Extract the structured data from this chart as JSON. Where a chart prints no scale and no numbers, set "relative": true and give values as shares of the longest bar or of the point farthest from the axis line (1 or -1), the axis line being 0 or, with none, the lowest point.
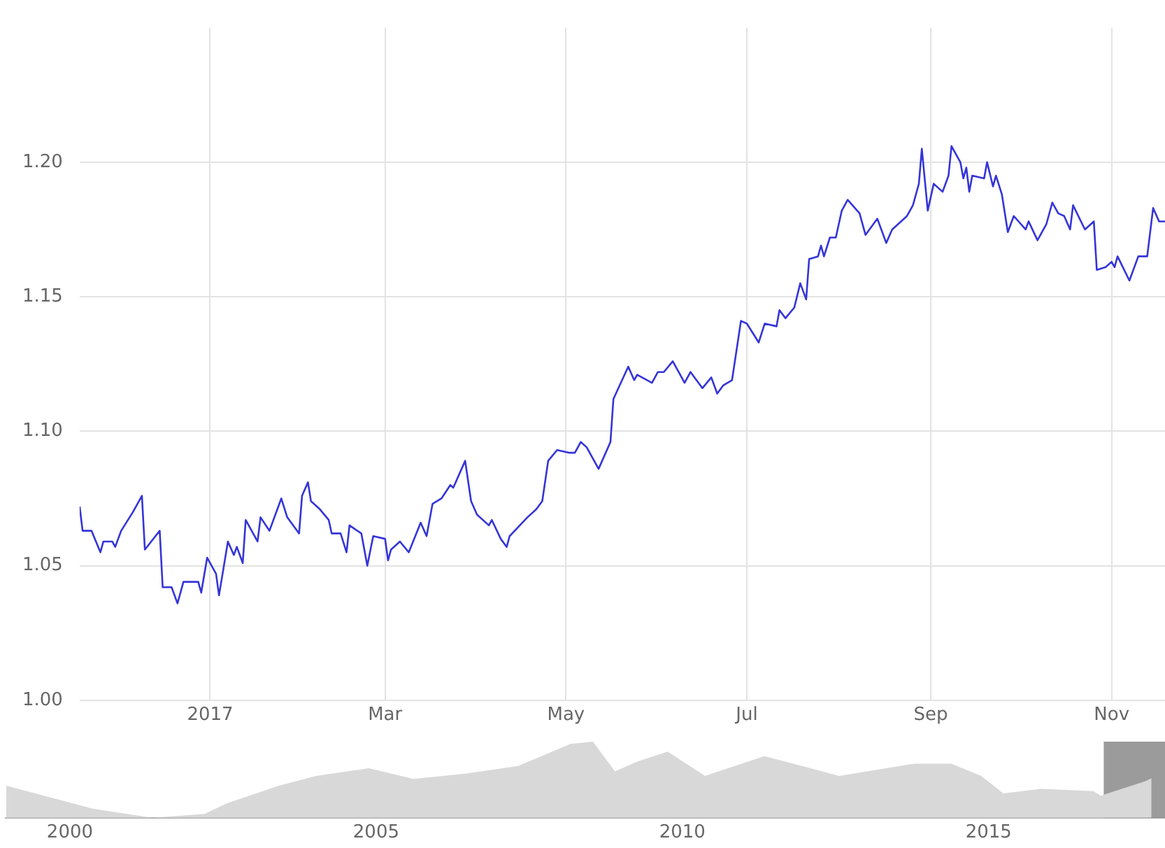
{
  "chart_data": [
    {
      "type": "line",
      "x": [
        "2016-11-18",
        "2016-11-19",
        "2016-11-22",
        "2016-11-25",
        "2016-11-26",
        "2016-11-29",
        "2016-11-30",
        "2016-12-02",
        "2016-12-06",
        "2016-12-09",
        "2016-12-10",
        "2016-12-15",
        "2016-12-16",
        "2016-12-19",
        "2016-12-21",
        "2016-12-23",
        "2016-12-28",
        "2016-12-29",
        "2016-12-31",
        "2017-01-03",
        "2017-01-04",
        "2017-01-07",
        "2017-01-09",
        "2017-01-10",
        "2017-01-12",
        "2017-01-13",
        "2017-01-17",
        "2017-01-18",
        "2017-01-21",
        "2017-01-25",
        "2017-01-27",
        "2017-01-31",
        "2017-02-01",
        "2017-02-03",
        "2017-02-04",
        "2017-02-07",
        "2017-02-10",
        "2017-02-11",
        "2017-02-14",
        "2017-02-16",
        "2017-02-17",
        "2017-02-21",
        "2017-02-23",
        "2017-02-25",
        "2017-03-01",
        "2017-03-02",
        "2017-03-03",
        "2017-03-06",
        "2017-03-09",
        "2017-03-13",
        "2017-03-15",
        "2017-03-17",
        "2017-03-20",
        "2017-03-23",
        "2017-03-24",
        "2017-03-28",
        "2017-03-30",
        "2017-04-01",
        "2017-04-05",
        "2017-04-06",
        "2017-04-09",
        "2017-04-11",
        "2017-04-12",
        "2017-04-18",
        "2017-04-21",
        "2017-04-23",
        "2017-04-25",
        "2017-04-28",
        "2017-05-02",
        "2017-05-04",
        "2017-05-06",
        "2017-05-08",
        "2017-05-12",
        "2017-05-16",
        "2017-05-17",
        "2017-05-22",
        "2017-05-24",
        "2017-05-25",
        "2017-05-30",
        "2017-06-01",
        "2017-06-03",
        "2017-06-06",
        "2017-06-08",
        "2017-06-10",
        "2017-06-12",
        "2017-06-16",
        "2017-06-19",
        "2017-06-21",
        "2017-06-23",
        "2017-06-26",
        "2017-06-29",
        "2017-07-01",
        "2017-07-05",
        "2017-07-07",
        "2017-07-11",
        "2017-07-12",
        "2017-07-14",
        "2017-07-17",
        "2017-07-19",
        "2017-07-21",
        "2017-07-22",
        "2017-07-25",
        "2017-07-26",
        "2017-07-27",
        "2017-07-29",
        "2017-07-31",
        "2017-08-02",
        "2017-08-04",
        "2017-08-08",
        "2017-08-10",
        "2017-08-14",
        "2017-08-17",
        "2017-08-19",
        "2017-08-24",
        "2017-08-26",
        "2017-08-28",
        "2017-08-29",
        "2017-08-31",
        "2017-09-02",
        "2017-09-05",
        "2017-09-07",
        "2017-09-08",
        "2017-09-11",
        "2017-09-12",
        "2017-09-13",
        "2017-09-14",
        "2017-09-15",
        "2017-09-19",
        "2017-09-20",
        "2017-09-22",
        "2017-09-23",
        "2017-09-25",
        "2017-09-27",
        "2017-09-29",
        "2017-10-03",
        "2017-10-04",
        "2017-10-07",
        "2017-10-10",
        "2017-10-12",
        "2017-10-14",
        "2017-10-16",
        "2017-10-18",
        "2017-10-19",
        "2017-10-23",
        "2017-10-26",
        "2017-10-27",
        "2017-10-30",
        "2017-11-01",
        "2017-11-02",
        "2017-11-03",
        "2017-11-07",
        "2017-11-10",
        "2017-11-13",
        "2017-11-15",
        "2017-11-17",
        "2017-11-19"
      ],
      "series": [
        {
          "color": "#3535d8",
          "values": [
            1.072,
            1.063,
            1.063,
            1.055,
            1.059,
            1.059,
            1.057,
            1.063,
            1.07,
            1.076,
            1.056,
            1.063,
            1.042,
            1.042,
            1.036,
            1.044,
            1.044,
            1.04,
            1.053,
            1.047,
            1.039,
            1.059,
            1.054,
            1.057,
            1.051,
            1.067,
            1.059,
            1.068,
            1.063,
            1.075,
            1.068,
            1.062,
            1.076,
            1.081,
            1.074,
            1.071,
            1.067,
            1.062,
            1.062,
            1.055,
            1.065,
            1.062,
            1.05,
            1.061,
            1.06,
            1.052,
            1.056,
            1.059,
            1.055,
            1.066,
            1.061,
            1.073,
            1.075,
            1.08,
            1.079,
            1.089,
            1.074,
            1.069,
            1.065,
            1.067,
            1.06,
            1.057,
            1.061,
            1.068,
            1.071,
            1.074,
            1.089,
            1.093,
            1.092,
            1.092,
            1.096,
            1.094,
            1.086,
            1.096,
            1.112,
            1.124,
            1.119,
            1.121,
            1.118,
            1.122,
            1.122,
            1.126,
            1.122,
            1.118,
            1.122,
            1.116,
            1.12,
            1.114,
            1.117,
            1.119,
            1.141,
            1.14,
            1.133,
            1.14,
            1.139,
            1.145,
            1.142,
            1.146,
            1.155,
            1.149,
            1.164,
            1.165,
            1.169,
            1.165,
            1.172,
            1.172,
            1.182,
            1.186,
            1.181,
            1.173,
            1.179,
            1.17,
            1.175,
            1.18,
            1.184,
            1.192,
            1.205,
            1.182,
            1.192,
            1.189,
            1.195,
            1.206,
            1.2,
            1.194,
            1.198,
            1.189,
            1.195,
            1.194,
            1.2,
            1.191,
            1.195,
            1.188,
            1.174,
            1.18,
            1.175,
            1.178,
            1.171,
            1.177,
            1.185,
            1.181,
            1.18,
            1.175,
            1.184,
            1.175,
            1.178,
            1.16,
            1.161,
            1.163,
            1.161,
            1.165,
            1.156,
            1.165,
            1.165,
            1.183,
            1.178,
            1.178
          ]
        }
      ],
      "xlim": [
        "2016-11-18",
        "2017-11-19"
      ],
      "xticks": [
        {
          "value": "2017-01-01",
          "label": "2017"
        },
        {
          "value": "2017-03-01",
          "label": "Mar"
        },
        {
          "value": "2017-05-01",
          "label": "May"
        },
        {
          "value": "2017-07-01",
          "label": "Jul"
        },
        {
          "value": "2017-09-01",
          "label": "Sep"
        },
        {
          "value": "2017-11-01",
          "label": "Nov"
        }
      ],
      "ylim": [
        1.0,
        1.25
      ],
      "yticks": [
        {
          "value": 1.0,
          "label": "1.00"
        },
        {
          "value": 1.05,
          "label": "1.05"
        },
        {
          "value": 1.1,
          "label": "1.10"
        },
        {
          "value": 1.15,
          "label": "1.15"
        },
        {
          "value": 1.2,
          "label": "1.20"
        }
      ],
      "grid": true,
      "legend": false,
      "marker": "none",
      "line_style": "solid"
    },
    {
      "type": "area",
      "relative": true,
      "tick_labels": "x",
      "x": [
        1998.96,
        1999.76,
        2000.37,
        2001.34,
        2002.2,
        2002.56,
        2003.41,
        2004.02,
        2004.88,
        2005.61,
        2006.46,
        2007.32,
        2008.17,
        2008.54,
        2008.9,
        2009.27,
        2009.76,
        2010.37,
        2011.34,
        2011.95,
        2012.56,
        2013.78,
        2014.39,
        2014.88,
        2015.24,
        2015.85,
        2016.71,
        2016.83,
        2017.56,
        2017.66
      ],
      "series": [
        {
          "color": "#d8d8d8",
          "values": [
            0.42,
            0.25,
            0.12,
            0,
            0.05,
            0.19,
            0.42,
            0.55,
            0.65,
            0.51,
            0.58,
            0.68,
            0.97,
            1,
            0.61,
            0.74,
            0.87,
            0.55,
            0.81,
            0.68,
            0.55,
            0.71,
            0.71,
            0.55,
            0.32,
            0.38,
            0.35,
            0.29,
            0.48,
            0.52
          ]
        }
      ],
      "xlim": [
        1998.95,
        2017.88
      ],
      "xticks": [
        2000,
        2005,
        2010,
        2015
      ],
      "bands": [
        {
          "axis": "x",
          "from": 2016.88,
          "to": 2017.88,
          "color": "#7a7a7a"
        }
      ],
      "grid": false,
      "legend": false
    }
  ]
}
